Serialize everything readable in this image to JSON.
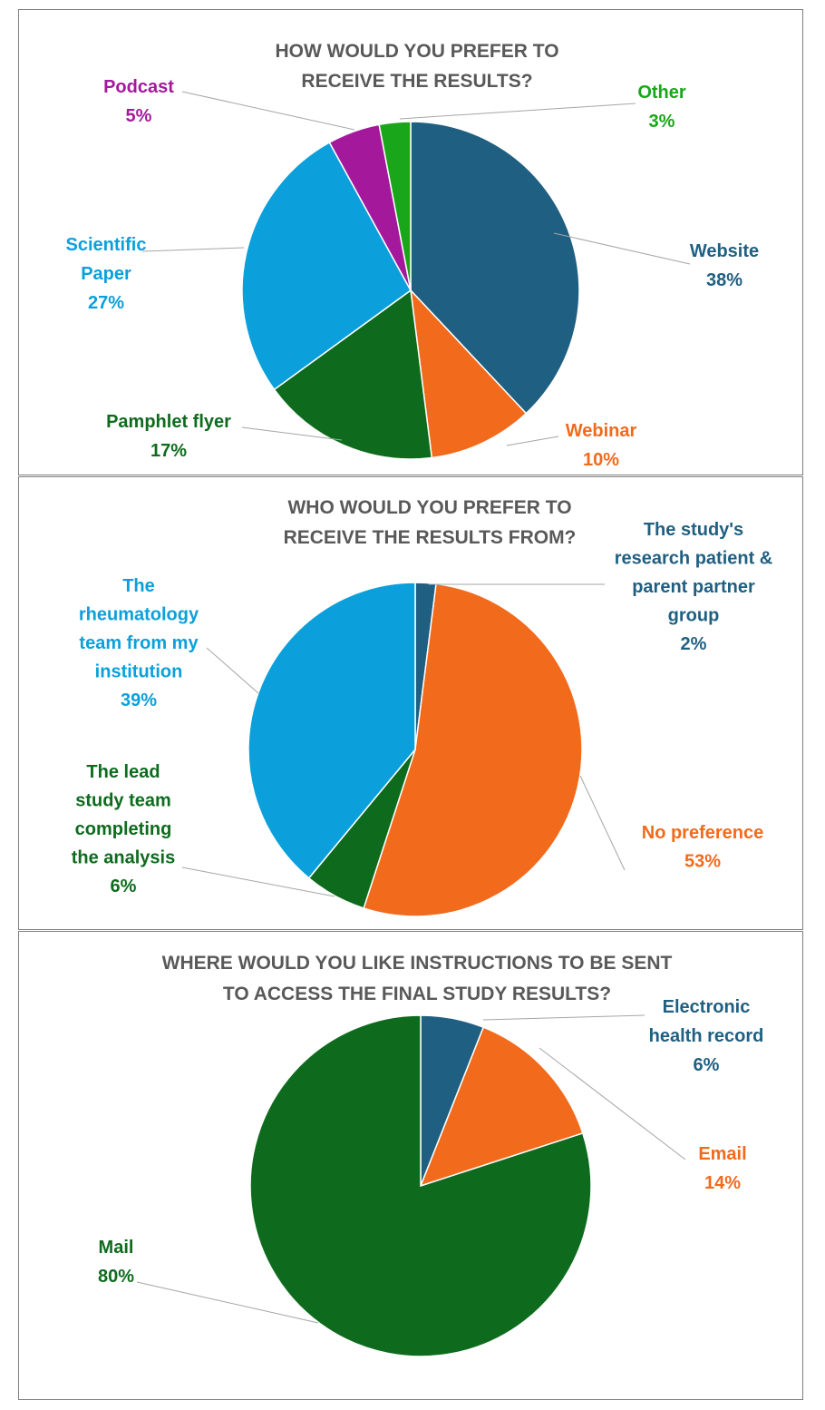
{
  "colors": {
    "blue_dark": "#1f5f81",
    "orange": "#f26a1b",
    "green_dark": "#0e6b1e",
    "blue_light": "#0ba0db",
    "magenta": "#a4199c",
    "green_light": "#1aa61a"
  },
  "chart_data": [
    {
      "type": "pie",
      "title": [
        "HOW WOULD YOU PREFER TO",
        "RECEIVE THE RESULTS?"
      ],
      "slices": [
        {
          "label": [
            "Website"
          ],
          "value": 38,
          "pct": "38%",
          "color": "#1f5f81"
        },
        {
          "label": [
            "Webinar"
          ],
          "value": 10,
          "pct": "10%",
          "color": "#f26a1b"
        },
        {
          "label": [
            "Pamphlet flyer"
          ],
          "value": 17,
          "pct": "17%",
          "color": "#0e6b1e"
        },
        {
          "label": [
            "Scientific",
            "Paper"
          ],
          "value": 27,
          "pct": "27%",
          "color": "#0ba0db"
        },
        {
          "label": [
            "Podcast"
          ],
          "value": 5,
          "pct": "5%",
          "color": "#a4199c"
        },
        {
          "label": [
            "Other"
          ],
          "value": 3,
          "pct": "3%",
          "color": "#1aa61a"
        }
      ]
    },
    {
      "type": "pie",
      "title": [
        "WHO WOULD YOU PREFER TO",
        "RECEIVE THE RESULTS FROM?"
      ],
      "slices": [
        {
          "label": [
            "The study's",
            "research patient &",
            "parent partner",
            "group"
          ],
          "value": 2,
          "pct": "2%",
          "color": "#1f5f81"
        },
        {
          "label": [
            "No preference"
          ],
          "value": 53,
          "pct": "53%",
          "color": "#f26a1b"
        },
        {
          "label": [
            "The lead",
            "study team",
            "completing",
            "the analysis"
          ],
          "value": 6,
          "pct": "6%",
          "color": "#0e6b1e"
        },
        {
          "label": [
            "The",
            "rheumatology",
            "team from my",
            "institution"
          ],
          "value": 39,
          "pct": "39%",
          "color": "#0ba0db"
        }
      ]
    },
    {
      "type": "pie",
      "title": [
        "WHERE WOULD YOU LIKE INSTRUCTIONS TO BE SENT",
        "TO ACCESS THE FINAL STUDY RESULTS?"
      ],
      "slices": [
        {
          "label": [
            "Electronic",
            "health record"
          ],
          "value": 6,
          "pct": "6%",
          "color": "#1f5f81"
        },
        {
          "label": [
            "Email"
          ],
          "value": 14,
          "pct": "14%",
          "color": "#f26a1b"
        },
        {
          "label": [
            "Mail"
          ],
          "value": 80,
          "pct": "80%",
          "color": "#0e6b1e"
        }
      ]
    }
  ]
}
